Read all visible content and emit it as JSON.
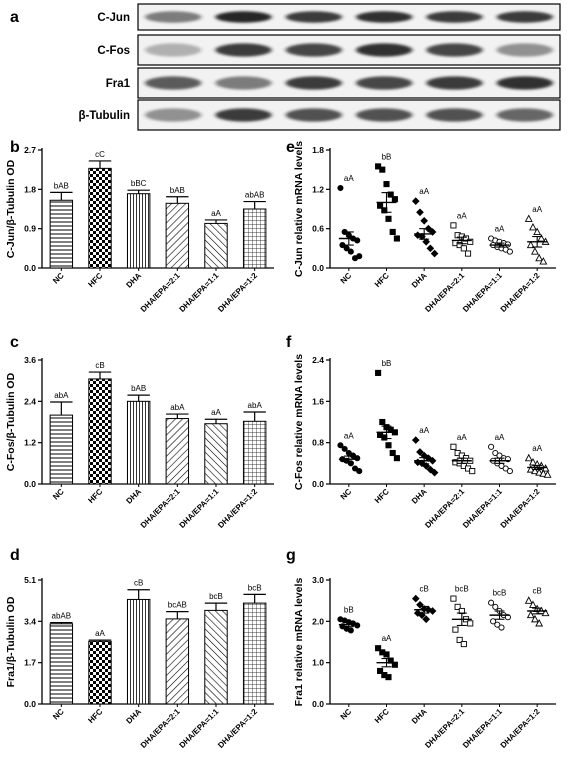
{
  "figure": {
    "panel_letters": [
      "a",
      "b",
      "c",
      "d",
      "e",
      "f",
      "g"
    ],
    "blot": {
      "lanes": 6,
      "bands": [
        {
          "label": "C-Jun",
          "intensity": [
            0.55,
            0.95,
            0.85,
            0.9,
            0.85,
            0.85
          ]
        },
        {
          "label": "C-Fos",
          "intensity": [
            0.3,
            0.85,
            0.8,
            0.9,
            0.8,
            0.45
          ]
        },
        {
          "label": "Fra1",
          "intensity": [
            0.7,
            0.55,
            0.85,
            0.8,
            0.85,
            0.9
          ]
        },
        {
          "label": "β-Tubulin",
          "intensity": [
            0.45,
            0.85,
            0.75,
            0.75,
            0.75,
            0.65
          ]
        }
      ]
    }
  },
  "colors": {
    "axis": "#000000",
    "bar_fill": "#ffffff",
    "band": "#1a1a1a"
  },
  "chart_data": [
    {
      "panel": "b",
      "type": "bar",
      "categories": [
        "NC",
        "HFC",
        "DHA",
        "DHA/EPA=2:1",
        "DHA/EPA=1:1",
        "DHA/EPA=1:2"
      ],
      "values": [
        1.55,
        2.28,
        1.7,
        1.48,
        1.02,
        1.35
      ],
      "errors": [
        0.18,
        0.17,
        0.08,
        0.15,
        0.08,
        0.17
      ],
      "labels": [
        "bAB",
        "cC",
        "bBC",
        "bAB",
        "aA",
        "abAB"
      ],
      "patterns": [
        "hhatch",
        "check",
        "vline",
        "diag",
        "diagr",
        "grid"
      ],
      "ylabel": "C-Jun/β-Tubulin OD",
      "ylim": [
        0,
        2.7
      ],
      "yticks": [
        "0.0",
        "0.9",
        "1.8",
        "2.7"
      ]
    },
    {
      "panel": "c",
      "type": "bar",
      "categories": [
        "NC",
        "HFC",
        "DHA",
        "DHA/EPA=2:1",
        "DHA/EPA=1:1",
        "DHA/EPA=1:2"
      ],
      "values": [
        2.0,
        3.05,
        2.4,
        1.9,
        1.75,
        1.82
      ],
      "errors": [
        0.38,
        0.2,
        0.18,
        0.13,
        0.13,
        0.27
      ],
      "labels": [
        "abA",
        "cB",
        "bAB",
        "abA",
        "aA",
        "abA"
      ],
      "patterns": [
        "hhatch",
        "check",
        "vline",
        "diag",
        "diagr",
        "grid"
      ],
      "ylabel": "C-Fos/β-Tubulin OD",
      "ylim": [
        0,
        3.6
      ],
      "yticks": [
        "0.0",
        "1.2",
        "2.4",
        "3.6"
      ]
    },
    {
      "panel": "d",
      "type": "bar",
      "categories": [
        "NC",
        "HFC",
        "DHA",
        "DHA/EPA=2:1",
        "DHA/EPA=1:1",
        "DHA/EPA=1:2"
      ],
      "values": [
        3.3,
        2.58,
        4.3,
        3.5,
        3.85,
        4.15
      ],
      "errors": [
        0.05,
        0.05,
        0.4,
        0.3,
        0.3,
        0.36
      ],
      "labels": [
        "abAB",
        "aA",
        "cB",
        "bcAB",
        "bcB",
        "bcB"
      ],
      "patterns": [
        "hhatch",
        "check",
        "vline",
        "diag",
        "diagr",
        "grid"
      ],
      "ylabel": "Fra1/β-Tubulin OD",
      "ylim": [
        0,
        5.1
      ],
      "yticks": [
        "0.0",
        "1.7",
        "3.4",
        "5.1"
      ]
    },
    {
      "panel": "e",
      "type": "scatter",
      "categories": [
        "NC",
        "HFC",
        "DHA",
        "DHA/EPA=2:1",
        "DHA/EPA=1:1",
        "DHA/EPA=1:2"
      ],
      "markers": [
        "circle-filled",
        "square-filled",
        "diamond-filled",
        "square-open",
        "circle-open",
        "triangle-open"
      ],
      "points": [
        [
          1.22,
          0.55,
          0.5,
          0.45,
          0.42,
          0.35,
          0.3,
          0.25,
          0.15,
          0.18
        ],
        [
          1.55,
          1.5,
          1.28,
          1.12,
          1.05,
          0.95,
          0.88,
          0.75,
          0.55,
          0.45
        ],
        [
          1.02,
          0.85,
          0.72,
          0.6,
          0.55,
          0.5,
          0.48,
          0.4,
          0.3,
          0.22
        ],
        [
          0.65,
          0.5,
          0.48,
          0.45,
          0.4,
          0.38,
          0.35,
          0.3,
          0.22
        ],
        [
          0.45,
          0.42,
          0.4,
          0.38,
          0.36,
          0.35,
          0.32,
          0.3,
          0.28,
          0.25
        ],
        [
          0.75,
          0.62,
          0.55,
          0.45,
          0.4,
          0.35,
          0.25,
          0.15,
          0.1
        ]
      ],
      "means": [
        0.45,
        1.0,
        0.52,
        0.42,
        0.35,
        0.4
      ],
      "sems": [
        0.1,
        0.15,
        0.08,
        0.05,
        0.03,
        0.08
      ],
      "labels": [
        "aA",
        "bB",
        "aA",
        "aA",
        "aA",
        "aA"
      ],
      "ylabel": "C-Jun relative mRNA levels",
      "ylim": [
        0,
        1.8
      ],
      "yticks": [
        "0.0",
        "0.6",
        "1.2",
        "1.8"
      ]
    },
    {
      "panel": "f",
      "type": "scatter",
      "categories": [
        "NC",
        "HFC",
        "DHA",
        "DHA/EPA=2:1",
        "DHA/EPA=1:1",
        "DHA/EPA=1:2"
      ],
      "markers": [
        "circle-filled",
        "square-filled",
        "diamond-filled",
        "square-open",
        "circle-open",
        "triangle-open"
      ],
      "points": [
        [
          0.75,
          0.68,
          0.6,
          0.55,
          0.5,
          0.48,
          0.45,
          0.4,
          0.3,
          0.25
        ],
        [
          2.15,
          1.2,
          1.1,
          1.05,
          1.0,
          0.95,
          0.9,
          0.75,
          0.6,
          0.5
        ],
        [
          0.85,
          0.62,
          0.55,
          0.5,
          0.45,
          0.42,
          0.4,
          0.35,
          0.28,
          0.22
        ],
        [
          0.72,
          0.6,
          0.55,
          0.5,
          0.45,
          0.42,
          0.4,
          0.35,
          0.3,
          0.25
        ],
        [
          0.72,
          0.6,
          0.55,
          0.5,
          0.48,
          0.45,
          0.4,
          0.35,
          0.3,
          0.25
        ],
        [
          0.5,
          0.42,
          0.38,
          0.35,
          0.3,
          0.28,
          0.25,
          0.22,
          0.2,
          0.18
        ]
      ],
      "means": [
        0.48,
        1.0,
        0.45,
        0.45,
        0.45,
        0.32
      ],
      "sems": [
        0.06,
        0.12,
        0.06,
        0.05,
        0.05,
        0.04
      ],
      "labels": [
        "aA",
        "bB",
        "aA",
        "aA",
        "aA",
        "aA"
      ],
      "ylabel": "C-Fos relative mRNA levels",
      "ylim": [
        0,
        2.4
      ],
      "yticks": [
        "0.0",
        "0.8",
        "1.6",
        "2.4"
      ]
    },
    {
      "panel": "g",
      "type": "scatter",
      "categories": [
        "NC",
        "HFC",
        "DHA",
        "DHA/EPA=2:1",
        "DHA/EPA=1:1",
        "DHA/EPA=1:2"
      ],
      "markers": [
        "circle-filled",
        "square-filled",
        "diamond-filled",
        "square-open",
        "circle-open",
        "triangle-open"
      ],
      "points": [
        [
          2.05,
          2.02,
          1.98,
          1.95,
          1.9,
          1.88,
          1.82,
          1.78
        ],
        [
          1.35,
          1.25,
          1.2,
          1.05,
          0.95,
          0.8,
          0.7,
          0.65
        ],
        [
          2.55,
          2.4,
          2.3,
          2.28,
          2.25,
          2.2,
          2.15,
          2.05
        ],
        [
          2.55,
          2.35,
          2.25,
          2.05,
          1.95,
          1.8,
          1.55,
          1.45
        ],
        [
          2.45,
          2.35,
          2.25,
          2.15,
          2.1,
          2.0,
          1.92,
          1.85
        ],
        [
          2.5,
          2.4,
          2.3,
          2.25,
          2.2,
          2.15,
          2.05,
          1.95
        ]
      ],
      "means": [
        1.92,
        1.0,
        2.28,
        2.05,
        2.15,
        2.25
      ],
      "sems": [
        0.05,
        0.1,
        0.08,
        0.15,
        0.1,
        0.07
      ],
      "labels": [
        "bB",
        "aA",
        "cB",
        "bcB",
        "bcB",
        "cB"
      ],
      "ylabel": "Fra1 relative mRNA levels",
      "ylim": [
        0,
        3.0
      ],
      "yticks": [
        "0.0",
        "1.0",
        "2.0",
        "3.0"
      ]
    }
  ]
}
